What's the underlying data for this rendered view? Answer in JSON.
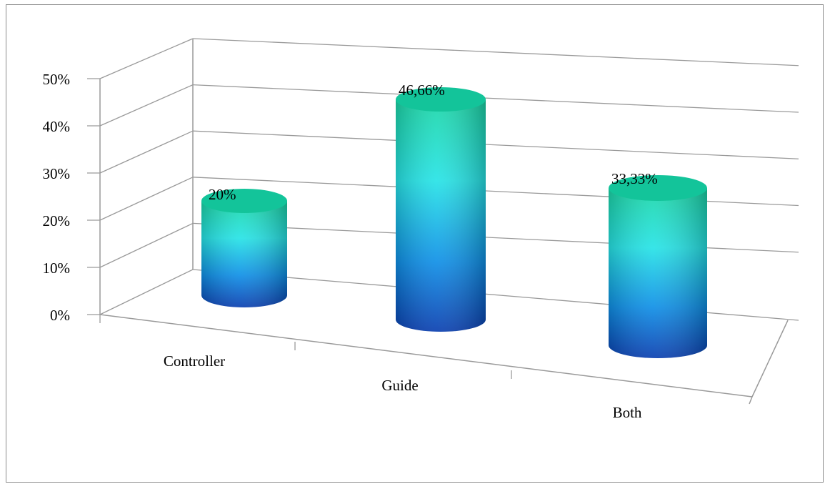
{
  "chart_data": {
    "type": "bar",
    "style": "3d-cylinder",
    "categories": [
      "Controller",
      "Guide",
      "Both"
    ],
    "values": [
      20,
      46.66,
      33.33
    ],
    "data_labels": [
      "20%",
      "46,66%",
      "33,33%"
    ],
    "y_ticks": [
      "0%",
      "10%",
      "20%",
      "30%",
      "40%",
      "50%"
    ],
    "ylim": [
      0,
      50
    ],
    "title": "",
    "xlabel": "",
    "ylabel": "",
    "grid": true,
    "colors": {
      "top": "#15c9a2",
      "middle": "#22e0e8",
      "bottom": "#0b55c8",
      "grid": "#9a9a9a"
    }
  }
}
